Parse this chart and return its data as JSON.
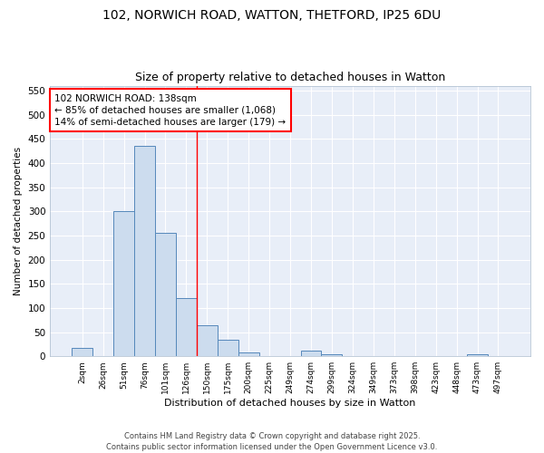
{
  "title1": "102, NORWICH ROAD, WATTON, THETFORD, IP25 6DU",
  "title2": "Size of property relative to detached houses in Watton",
  "xlabel": "Distribution of detached houses by size in Watton",
  "ylabel": "Number of detached properties",
  "bar_color": "#ccdcee",
  "bar_edge_color": "#5588bb",
  "background_color": "#e8eef8",
  "grid_color": "white",
  "categories": [
    "2sqm",
    "26sqm",
    "51sqm",
    "76sqm",
    "101sqm",
    "126sqm",
    "150sqm",
    "175sqm",
    "200sqm",
    "225sqm",
    "249sqm",
    "274sqm",
    "299sqm",
    "324sqm",
    "349sqm",
    "373sqm",
    "398sqm",
    "423sqm",
    "448sqm",
    "473sqm",
    "497sqm"
  ],
  "values": [
    18,
    0,
    300,
    435,
    255,
    120,
    65,
    35,
    7,
    0,
    0,
    12,
    4,
    0,
    0,
    0,
    0,
    0,
    0,
    4,
    0
  ],
  "ylim": [
    0,
    560
  ],
  "yticks": [
    0,
    50,
    100,
    150,
    200,
    250,
    300,
    350,
    400,
    450,
    500,
    550
  ],
  "red_line_x": 5.5,
  "annotation_text": "102 NORWICH ROAD: 138sqm\n← 85% of detached houses are smaller (1,068)\n14% of semi-detached houses are larger (179) →",
  "footer1": "Contains HM Land Registry data © Crown copyright and database right 2025.",
  "footer2": "Contains public sector information licensed under the Open Government Licence v3.0."
}
